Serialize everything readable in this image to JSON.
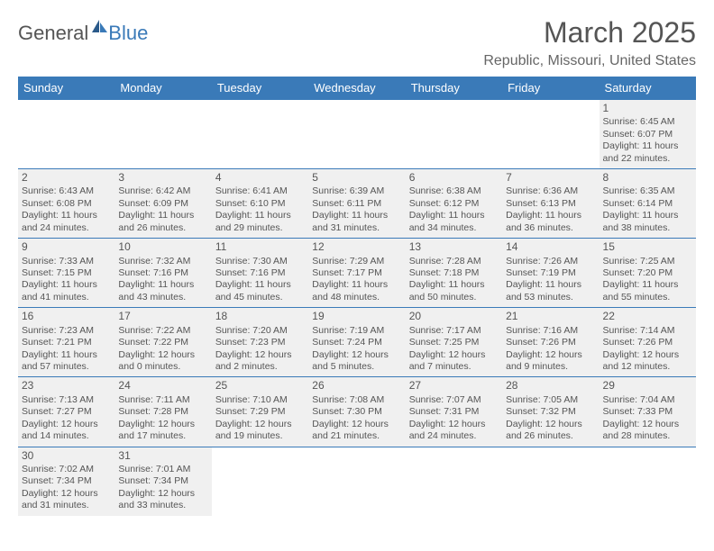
{
  "logo": {
    "general": "General",
    "blue": "Blue"
  },
  "title": "March 2025",
  "subtitle": "Republic, Missouri, United States",
  "colors": {
    "header_bg": "#3a7ab8",
    "cell_bg": "#f0f0f0",
    "text": "#555555"
  },
  "weekdays": [
    "Sunday",
    "Monday",
    "Tuesday",
    "Wednesday",
    "Thursday",
    "Friday",
    "Saturday"
  ],
  "weeks": [
    [
      null,
      null,
      null,
      null,
      null,
      null,
      {
        "d": "1",
        "sr": "Sunrise: 6:45 AM",
        "ss": "Sunset: 6:07 PM",
        "dl1": "Daylight: 11 hours",
        "dl2": "and 22 minutes."
      }
    ],
    [
      {
        "d": "2",
        "sr": "Sunrise: 6:43 AM",
        "ss": "Sunset: 6:08 PM",
        "dl1": "Daylight: 11 hours",
        "dl2": "and 24 minutes."
      },
      {
        "d": "3",
        "sr": "Sunrise: 6:42 AM",
        "ss": "Sunset: 6:09 PM",
        "dl1": "Daylight: 11 hours",
        "dl2": "and 26 minutes."
      },
      {
        "d": "4",
        "sr": "Sunrise: 6:41 AM",
        "ss": "Sunset: 6:10 PM",
        "dl1": "Daylight: 11 hours",
        "dl2": "and 29 minutes."
      },
      {
        "d": "5",
        "sr": "Sunrise: 6:39 AM",
        "ss": "Sunset: 6:11 PM",
        "dl1": "Daylight: 11 hours",
        "dl2": "and 31 minutes."
      },
      {
        "d": "6",
        "sr": "Sunrise: 6:38 AM",
        "ss": "Sunset: 6:12 PM",
        "dl1": "Daylight: 11 hours",
        "dl2": "and 34 minutes."
      },
      {
        "d": "7",
        "sr": "Sunrise: 6:36 AM",
        "ss": "Sunset: 6:13 PM",
        "dl1": "Daylight: 11 hours",
        "dl2": "and 36 minutes."
      },
      {
        "d": "8",
        "sr": "Sunrise: 6:35 AM",
        "ss": "Sunset: 6:14 PM",
        "dl1": "Daylight: 11 hours",
        "dl2": "and 38 minutes."
      }
    ],
    [
      {
        "d": "9",
        "sr": "Sunrise: 7:33 AM",
        "ss": "Sunset: 7:15 PM",
        "dl1": "Daylight: 11 hours",
        "dl2": "and 41 minutes."
      },
      {
        "d": "10",
        "sr": "Sunrise: 7:32 AM",
        "ss": "Sunset: 7:16 PM",
        "dl1": "Daylight: 11 hours",
        "dl2": "and 43 minutes."
      },
      {
        "d": "11",
        "sr": "Sunrise: 7:30 AM",
        "ss": "Sunset: 7:16 PM",
        "dl1": "Daylight: 11 hours",
        "dl2": "and 45 minutes."
      },
      {
        "d": "12",
        "sr": "Sunrise: 7:29 AM",
        "ss": "Sunset: 7:17 PM",
        "dl1": "Daylight: 11 hours",
        "dl2": "and 48 minutes."
      },
      {
        "d": "13",
        "sr": "Sunrise: 7:28 AM",
        "ss": "Sunset: 7:18 PM",
        "dl1": "Daylight: 11 hours",
        "dl2": "and 50 minutes."
      },
      {
        "d": "14",
        "sr": "Sunrise: 7:26 AM",
        "ss": "Sunset: 7:19 PM",
        "dl1": "Daylight: 11 hours",
        "dl2": "and 53 minutes."
      },
      {
        "d": "15",
        "sr": "Sunrise: 7:25 AM",
        "ss": "Sunset: 7:20 PM",
        "dl1": "Daylight: 11 hours",
        "dl2": "and 55 minutes."
      }
    ],
    [
      {
        "d": "16",
        "sr": "Sunrise: 7:23 AM",
        "ss": "Sunset: 7:21 PM",
        "dl1": "Daylight: 11 hours",
        "dl2": "and 57 minutes."
      },
      {
        "d": "17",
        "sr": "Sunrise: 7:22 AM",
        "ss": "Sunset: 7:22 PM",
        "dl1": "Daylight: 12 hours",
        "dl2": "and 0 minutes."
      },
      {
        "d": "18",
        "sr": "Sunrise: 7:20 AM",
        "ss": "Sunset: 7:23 PM",
        "dl1": "Daylight: 12 hours",
        "dl2": "and 2 minutes."
      },
      {
        "d": "19",
        "sr": "Sunrise: 7:19 AM",
        "ss": "Sunset: 7:24 PM",
        "dl1": "Daylight: 12 hours",
        "dl2": "and 5 minutes."
      },
      {
        "d": "20",
        "sr": "Sunrise: 7:17 AM",
        "ss": "Sunset: 7:25 PM",
        "dl1": "Daylight: 12 hours",
        "dl2": "and 7 minutes."
      },
      {
        "d": "21",
        "sr": "Sunrise: 7:16 AM",
        "ss": "Sunset: 7:26 PM",
        "dl1": "Daylight: 12 hours",
        "dl2": "and 9 minutes."
      },
      {
        "d": "22",
        "sr": "Sunrise: 7:14 AM",
        "ss": "Sunset: 7:26 PM",
        "dl1": "Daylight: 12 hours",
        "dl2": "and 12 minutes."
      }
    ],
    [
      {
        "d": "23",
        "sr": "Sunrise: 7:13 AM",
        "ss": "Sunset: 7:27 PM",
        "dl1": "Daylight: 12 hours",
        "dl2": "and 14 minutes."
      },
      {
        "d": "24",
        "sr": "Sunrise: 7:11 AM",
        "ss": "Sunset: 7:28 PM",
        "dl1": "Daylight: 12 hours",
        "dl2": "and 17 minutes."
      },
      {
        "d": "25",
        "sr": "Sunrise: 7:10 AM",
        "ss": "Sunset: 7:29 PM",
        "dl1": "Daylight: 12 hours",
        "dl2": "and 19 minutes."
      },
      {
        "d": "26",
        "sr": "Sunrise: 7:08 AM",
        "ss": "Sunset: 7:30 PM",
        "dl1": "Daylight: 12 hours",
        "dl2": "and 21 minutes."
      },
      {
        "d": "27",
        "sr": "Sunrise: 7:07 AM",
        "ss": "Sunset: 7:31 PM",
        "dl1": "Daylight: 12 hours",
        "dl2": "and 24 minutes."
      },
      {
        "d": "28",
        "sr": "Sunrise: 7:05 AM",
        "ss": "Sunset: 7:32 PM",
        "dl1": "Daylight: 12 hours",
        "dl2": "and 26 minutes."
      },
      {
        "d": "29",
        "sr": "Sunrise: 7:04 AM",
        "ss": "Sunset: 7:33 PM",
        "dl1": "Daylight: 12 hours",
        "dl2": "and 28 minutes."
      }
    ],
    [
      {
        "d": "30",
        "sr": "Sunrise: 7:02 AM",
        "ss": "Sunset: 7:34 PM",
        "dl1": "Daylight: 12 hours",
        "dl2": "and 31 minutes."
      },
      {
        "d": "31",
        "sr": "Sunrise: 7:01 AM",
        "ss": "Sunset: 7:34 PM",
        "dl1": "Daylight: 12 hours",
        "dl2": "and 33 minutes."
      },
      null,
      null,
      null,
      null,
      null
    ]
  ]
}
